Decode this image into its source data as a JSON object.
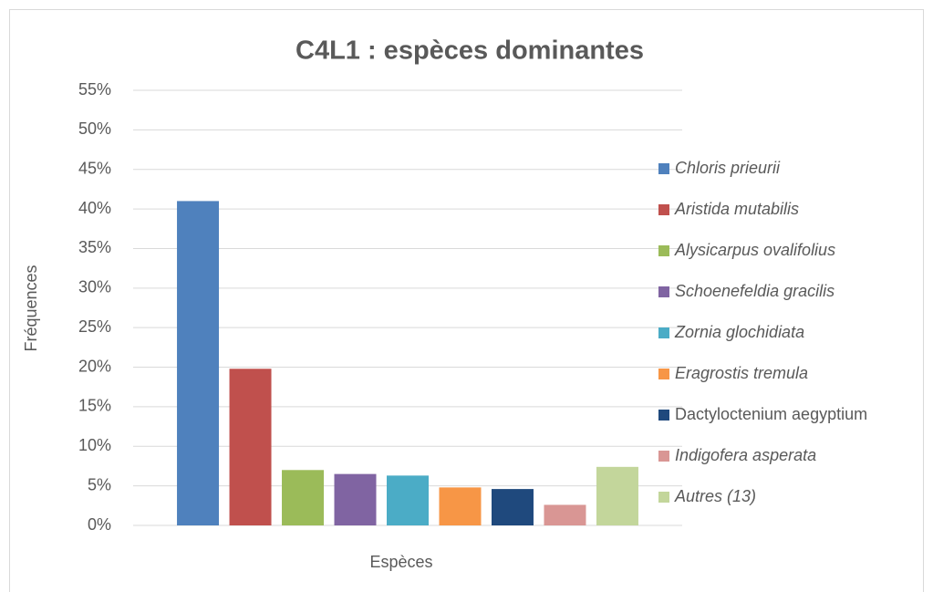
{
  "chart_data": {
    "type": "bar",
    "title": "C4L1 : espèces dominantes",
    "x_label": "Espèces",
    "y_label": "Fréquences",
    "categories": [
      null
    ],
    "series": [
      {
        "name": "Chloris prieurii",
        "color": "#4f81bd",
        "italic": true,
        "values": [
          41
        ]
      },
      {
        "name": "Aristida mutabilis",
        "color": "#c0504d",
        "italic": true,
        "values": [
          19.8
        ]
      },
      {
        "name": "Alysicarpus ovalifolius",
        "color": "#9bbb59",
        "italic": true,
        "values": [
          7
        ]
      },
      {
        "name": "Schoenefeldia gracilis",
        "color": "#8064a2",
        "italic": true,
        "values": [
          6.5
        ]
      },
      {
        "name": "Zornia  glochidiata",
        "color": "#4bacc6",
        "italic": true,
        "values": [
          6.3
        ]
      },
      {
        "name": "Eragrostis tremula",
        "color": "#f79646",
        "italic": true,
        "values": [
          4.8
        ]
      },
      {
        "name": "Dactyloctenium aegyptium",
        "color": "#1f497d",
        "italic": false,
        "values": [
          4.6
        ]
      },
      {
        "name": "Indigofera  asperata",
        "color": "#d99694",
        "italic": true,
        "values": [
          2.6
        ]
      },
      {
        "name": "Autres (13)",
        "color": "#c3d69b",
        "italic": true,
        "values": [
          7.4
        ]
      }
    ],
    "ylim": [
      0,
      55
    ],
    "yticks": [
      {
        "value": 0,
        "label": "0%"
      },
      {
        "value": 5,
        "label": "5%"
      },
      {
        "value": 10,
        "label": "10%"
      },
      {
        "value": 15,
        "label": "15%"
      },
      {
        "value": 20,
        "label": "20%"
      },
      {
        "value": 25,
        "label": "25%"
      },
      {
        "value": 30,
        "label": "30%"
      },
      {
        "value": 35,
        "label": "35%"
      },
      {
        "value": 40,
        "label": "40%"
      },
      {
        "value": 45,
        "label": "45%"
      },
      {
        "value": 50,
        "label": "50%"
      },
      {
        "value": 55,
        "label": "55%"
      }
    ],
    "grid": true,
    "legend": "right"
  }
}
